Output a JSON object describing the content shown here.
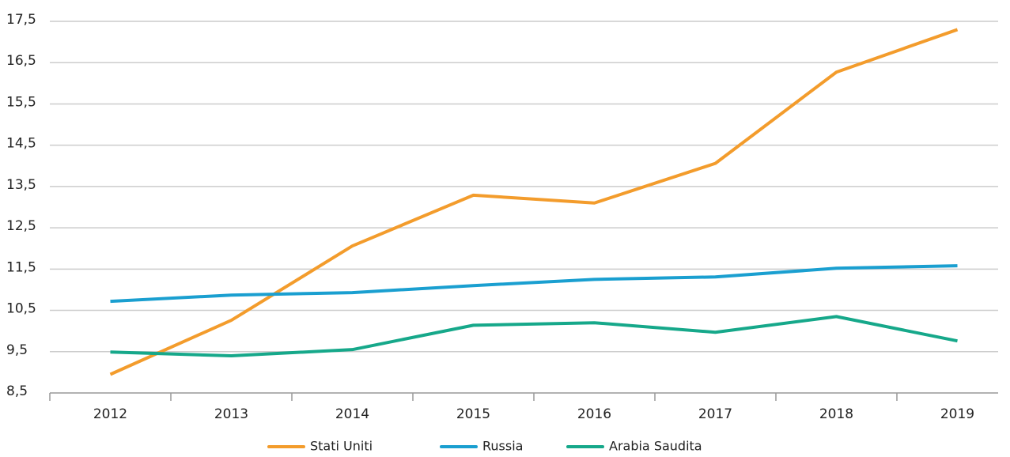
{
  "chart_data": {
    "type": "line",
    "categories": [
      "2012",
      "2013",
      "2014",
      "2015",
      "2016",
      "2017",
      "2018",
      "2019"
    ],
    "series": [
      {
        "name": "Stati Uniti",
        "color": "#f39c2c",
        "values": [
          8.95,
          10.26,
          12.06,
          13.29,
          13.1,
          14.06,
          16.27,
          17.3
        ]
      },
      {
        "name": "Russia",
        "color": "#1a9fd0",
        "values": [
          10.72,
          10.87,
          10.93,
          11.1,
          11.25,
          11.31,
          11.52,
          11.58
        ]
      },
      {
        "name": "Arabia Saudita",
        "color": "#16a88a",
        "values": [
          9.49,
          9.4,
          9.55,
          10.14,
          10.2,
          9.97,
          10.35,
          9.76
        ]
      }
    ],
    "ylim": [
      8.5,
      17.5
    ],
    "yticks": [
      {
        "value": 8.5,
        "label": "8,5"
      },
      {
        "value": 9.5,
        "label": "9,5"
      },
      {
        "value": 10.5,
        "label": "10,5"
      },
      {
        "value": 11.5,
        "label": "11,5"
      },
      {
        "value": 12.5,
        "label": "12,5"
      },
      {
        "value": 13.5,
        "label": "13,5"
      },
      {
        "value": 14.5,
        "label": "14,5"
      },
      {
        "value": 15.5,
        "label": "15,5"
      },
      {
        "value": 16.5,
        "label": "16,5"
      },
      {
        "value": 17.5,
        "label": "17,5"
      }
    ],
    "grid": true,
    "legend": "bottom"
  }
}
